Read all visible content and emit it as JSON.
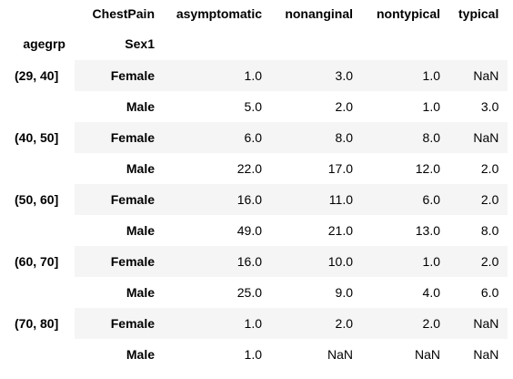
{
  "table": {
    "columns_name": "ChestPain",
    "columns": [
      "asymptomatic",
      "nonanginal",
      "nontypical",
      "typical"
    ],
    "index_names": [
      "agegrp",
      "Sex1"
    ],
    "groups": [
      {
        "agegrp": "(29, 40]",
        "rows": [
          {
            "sex": "Female",
            "values": [
              "1.0",
              "3.0",
              "1.0",
              "NaN"
            ]
          },
          {
            "sex": "Male",
            "values": [
              "5.0",
              "2.0",
              "1.0",
              "3.0"
            ]
          }
        ]
      },
      {
        "agegrp": "(40, 50]",
        "rows": [
          {
            "sex": "Female",
            "values": [
              "6.0",
              "8.0",
              "8.0",
              "NaN"
            ]
          },
          {
            "sex": "Male",
            "values": [
              "22.0",
              "17.0",
              "12.0",
              "2.0"
            ]
          }
        ]
      },
      {
        "agegrp": "(50, 60]",
        "rows": [
          {
            "sex": "Female",
            "values": [
              "16.0",
              "11.0",
              "6.0",
              "2.0"
            ]
          },
          {
            "sex": "Male",
            "values": [
              "49.0",
              "21.0",
              "13.0",
              "8.0"
            ]
          }
        ]
      },
      {
        "agegrp": "(60, 70]",
        "rows": [
          {
            "sex": "Female",
            "values": [
              "16.0",
              "10.0",
              "1.0",
              "2.0"
            ]
          },
          {
            "sex": "Male",
            "values": [
              "25.0",
              "9.0",
              "4.0",
              "6.0"
            ]
          }
        ]
      },
      {
        "agegrp": "(70, 80]",
        "rows": [
          {
            "sex": "Female",
            "values": [
              "1.0",
              "2.0",
              "2.0",
              "NaN"
            ]
          },
          {
            "sex": "Male",
            "values": [
              "1.0",
              "NaN",
              "NaN",
              "NaN"
            ]
          }
        ]
      }
    ]
  }
}
